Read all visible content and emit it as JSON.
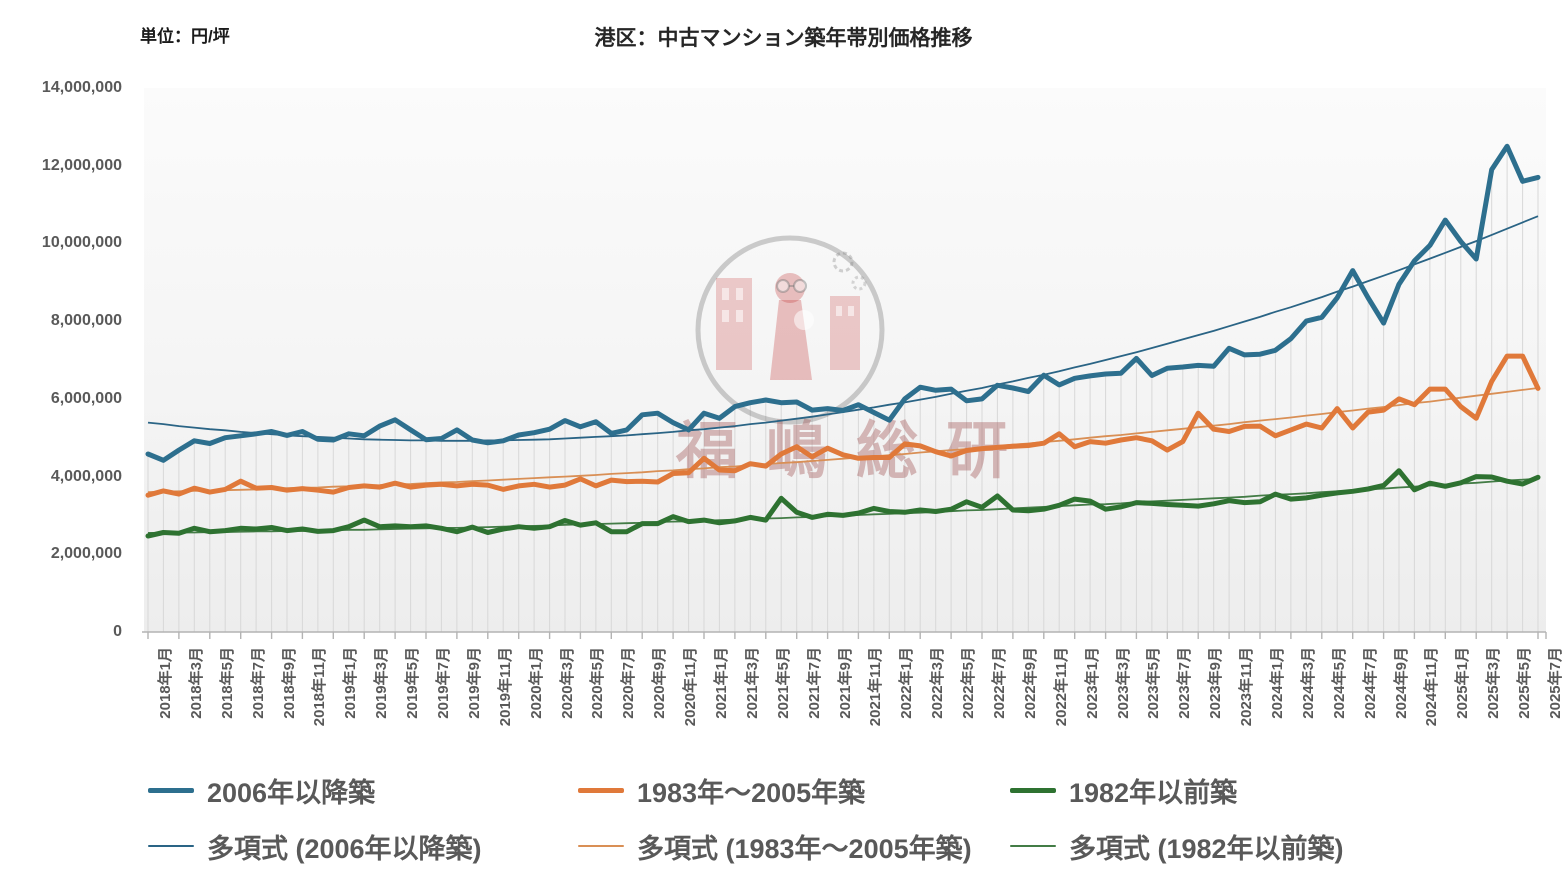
{
  "header": {
    "title": "港区：中古マンション築年帯別価格推移",
    "unit_label": "単位：円/坪"
  },
  "watermark": {
    "text": "福嶋総研"
  },
  "legend": {
    "items": [
      {
        "label": "2006年以降築"
      },
      {
        "label": "1983年〜2005年築"
      },
      {
        "label": "1982年以前築"
      },
      {
        "label": "多項式 (2006年以降築)"
      },
      {
        "label": "多項式 (1983年〜2005年築)"
      },
      {
        "label": "多項式 (1982年以前築)"
      }
    ]
  },
  "chart_data": {
    "type": "line",
    "title": "港区：中古マンション築年帯別価格推移",
    "ylabel": "円/坪",
    "ylim": [
      0,
      14000000
    ],
    "y_tick_step": 2000000,
    "grid": "vertical-drop-lines",
    "legend_position": "bottom",
    "n_points": 91,
    "x_start": "2018年1月",
    "x_end": "2025年7月",
    "x_tick_labels": [
      "2018年1月",
      "2018年3月",
      "2018年5月",
      "2018年7月",
      "2018年9月",
      "2018年11月",
      "2019年1月",
      "2019年3月",
      "2019年5月",
      "2019年7月",
      "2019年9月",
      "2019年11月",
      "2020年1月",
      "2020年3月",
      "2020年5月",
      "2020年7月",
      "2020年9月",
      "2020年11月",
      "2021年1月",
      "2021年3月",
      "2021年5月",
      "2021年7月",
      "2021年9月",
      "2021年11月",
      "2022年1月",
      "2022年3月",
      "2022年5月",
      "2022年7月",
      "2022年9月",
      "2022年11月",
      "2023年1月",
      "2023年3月",
      "2023年5月",
      "2023年7月",
      "2023年9月",
      "2023年11月",
      "2024年1月",
      "2024年3月",
      "2024年5月",
      "2024年7月",
      "2024年9月",
      "2024年11月",
      "2025年1月",
      "2025年3月",
      "2025年5月",
      "2025年7月"
    ],
    "y_tick_labels": [
      "0",
      "2,000,000",
      "4,000,000",
      "6,000,000",
      "8,000,000",
      "10,000,000",
      "12,000,000",
      "14,000,000"
    ],
    "series": [
      {
        "name": "2006年以降築",
        "role": "main",
        "color": "#2d6f8e",
        "values": [
          4580000,
          4420000,
          4680000,
          4920000,
          4850000,
          5000000,
          5050000,
          5100000,
          5160000,
          5060000,
          5160000,
          4960000,
          4940000,
          5100000,
          5050000,
          5300000,
          5460000,
          5200000,
          4950000,
          4980000,
          5200000,
          4940000,
          4870000,
          4920000,
          5070000,
          5130000,
          5220000,
          5440000,
          5280000,
          5410000,
          5110000,
          5200000,
          5590000,
          5630000,
          5390000,
          5200000,
          5630000,
          5500000,
          5800000,
          5900000,
          5970000,
          5900000,
          5920000,
          5710000,
          5750000,
          5700000,
          5850000,
          5650000,
          5450000,
          6000000,
          6300000,
          6220000,
          6250000,
          5950000,
          6000000,
          6350000,
          6280000,
          6190000,
          6610000,
          6360000,
          6530000,
          6590000,
          6640000,
          6660000,
          7040000,
          6600000,
          6790000,
          6820000,
          6860000,
          6840000,
          7300000,
          7130000,
          7150000,
          7250000,
          7550000,
          8000000,
          8100000,
          8600000,
          9300000,
          8600000,
          7950000,
          8950000,
          9550000,
          9950000,
          10600000,
          10050000,
          9600000,
          11900000,
          12500000,
          11600000,
          11700000
        ]
      },
      {
        "name": "1983年〜2005年築",
        "role": "main",
        "color": "#e0793a",
        "values": [
          3520000,
          3630000,
          3550000,
          3700000,
          3600000,
          3670000,
          3880000,
          3700000,
          3720000,
          3650000,
          3690000,
          3650000,
          3600000,
          3720000,
          3760000,
          3730000,
          3830000,
          3730000,
          3780000,
          3800000,
          3760000,
          3800000,
          3780000,
          3670000,
          3760000,
          3800000,
          3730000,
          3780000,
          3940000,
          3760000,
          3910000,
          3870000,
          3880000,
          3860000,
          4080000,
          4100000,
          4470000,
          4170000,
          4150000,
          4330000,
          4270000,
          4580000,
          4770000,
          4510000,
          4730000,
          4560000,
          4470000,
          4490000,
          4490000,
          4840000,
          4790000,
          4640000,
          4530000,
          4670000,
          4720000,
          4750000,
          4780000,
          4800000,
          4860000,
          5100000,
          4770000,
          4900000,
          4860000,
          4940000,
          5000000,
          4920000,
          4680000,
          4900000,
          5630000,
          5220000,
          5160000,
          5290000,
          5300000,
          5050000,
          5200000,
          5350000,
          5250000,
          5750000,
          5250000,
          5660000,
          5710000,
          6000000,
          5850000,
          6250000,
          6250000,
          5800000,
          5500000,
          6450000,
          7100000,
          7100000,
          6270000
        ]
      },
      {
        "name": "1982年以前築",
        "role": "main",
        "color": "#2e7231",
        "values": [
          2470000,
          2560000,
          2540000,
          2670000,
          2580000,
          2610000,
          2670000,
          2650000,
          2690000,
          2610000,
          2650000,
          2590000,
          2610000,
          2710000,
          2880000,
          2710000,
          2730000,
          2710000,
          2730000,
          2670000,
          2580000,
          2700000,
          2560000,
          2650000,
          2710000,
          2670000,
          2710000,
          2870000,
          2750000,
          2810000,
          2580000,
          2580000,
          2790000,
          2790000,
          2970000,
          2840000,
          2880000,
          2810000,
          2860000,
          2950000,
          2880000,
          3440000,
          3080000,
          2950000,
          3030000,
          3000000,
          3060000,
          3180000,
          3100000,
          3080000,
          3140000,
          3100000,
          3160000,
          3350000,
          3210000,
          3500000,
          3140000,
          3120000,
          3160000,
          3260000,
          3420000,
          3370000,
          3160000,
          3220000,
          3330000,
          3310000,
          3280000,
          3260000,
          3240000,
          3300000,
          3380000,
          3330000,
          3350000,
          3550000,
          3420000,
          3450000,
          3520000,
          3580000,
          3620000,
          3680000,
          3770000,
          4150000,
          3660000,
          3830000,
          3750000,
          3840000,
          4000000,
          3990000,
          3880000,
          3810000,
          3980000
        ]
      },
      {
        "name": "多項式 (2006年以降築)",
        "role": "trend",
        "color": "#2a6485",
        "values": [
          5390000,
          5350000,
          5300000,
          5260000,
          5220000,
          5190000,
          5150000,
          5120000,
          5090000,
          5060000,
          5040000,
          5020000,
          5000000,
          4980000,
          4960000,
          4950000,
          4940000,
          4930000,
          4930000,
          4920000,
          4920000,
          4920000,
          4930000,
          4930000,
          4940000,
          4950000,
          4960000,
          4980000,
          5000000,
          5020000,
          5040000,
          5060000,
          5090000,
          5120000,
          5150000,
          5190000,
          5220000,
          5260000,
          5300000,
          5350000,
          5390000,
          5440000,
          5490000,
          5540000,
          5600000,
          5660000,
          5720000,
          5780000,
          5850000,
          5910000,
          5980000,
          6050000,
          6130000,
          6210000,
          6280000,
          6370000,
          6450000,
          6540000,
          6620000,
          6710000,
          6810000,
          6900000,
          7000000,
          7100000,
          7200000,
          7310000,
          7420000,
          7530000,
          7640000,
          7750000,
          7870000,
          7990000,
          8110000,
          8240000,
          8360000,
          8490000,
          8620000,
          8760000,
          8890000,
          9030000,
          9170000,
          9310000,
          9460000,
          9610000,
          9760000,
          9910000,
          10060000,
          10220000,
          10380000,
          10540000,
          10700000
        ]
      },
      {
        "name": "多項式 (1983年〜2005年築)",
        "role": "trend",
        "color": "#d98f55",
        "values": [
          3600000,
          3610000,
          3620000,
          3630000,
          3640000,
          3650000,
          3660000,
          3670000,
          3680000,
          3700000,
          3710000,
          3720000,
          3740000,
          3750000,
          3770000,
          3780000,
          3800000,
          3810000,
          3830000,
          3850000,
          3860000,
          3880000,
          3900000,
          3920000,
          3940000,
          3960000,
          3980000,
          4000000,
          4020000,
          4040000,
          4070000,
          4090000,
          4110000,
          4140000,
          4160000,
          4190000,
          4210000,
          4240000,
          4260000,
          4290000,
          4320000,
          4350000,
          4370000,
          4400000,
          4430000,
          4460000,
          4490000,
          4520000,
          4550000,
          4580000,
          4620000,
          4650000,
          4680000,
          4710000,
          4750000,
          4780000,
          4820000,
          4850000,
          4890000,
          4920000,
          4960000,
          5000000,
          5040000,
          5070000,
          5110000,
          5150000,
          5190000,
          5230000,
          5270000,
          5310000,
          5350000,
          5400000,
          5440000,
          5480000,
          5520000,
          5570000,
          5610000,
          5660000,
          5700000,
          5750000,
          5790000,
          5840000,
          5890000,
          5930000,
          5980000,
          6030000,
          6080000,
          6130000,
          6180000,
          6230000,
          6280000
        ]
      },
      {
        "name": "多項式 (1982年以前築)",
        "role": "trend",
        "color": "#437c46",
        "values": [
          2550000,
          2550000,
          2560000,
          2560000,
          2570000,
          2570000,
          2580000,
          2590000,
          2590000,
          2600000,
          2600000,
          2610000,
          2620000,
          2630000,
          2630000,
          2640000,
          2650000,
          2660000,
          2670000,
          2680000,
          2680000,
          2690000,
          2700000,
          2710000,
          2720000,
          2730000,
          2740000,
          2760000,
          2770000,
          2780000,
          2790000,
          2800000,
          2810000,
          2830000,
          2840000,
          2850000,
          2860000,
          2880000,
          2890000,
          2910000,
          2920000,
          2930000,
          2950000,
          2960000,
          2980000,
          2990000,
          3010000,
          3030000,
          3040000,
          3060000,
          3070000,
          3090000,
          3110000,
          3130000,
          3140000,
          3160000,
          3180000,
          3200000,
          3220000,
          3240000,
          3260000,
          3280000,
          3290000,
          3310000,
          3340000,
          3360000,
          3380000,
          3400000,
          3420000,
          3440000,
          3460000,
          3480000,
          3510000,
          3530000,
          3550000,
          3570000,
          3600000,
          3620000,
          3640000,
          3670000,
          3690000,
          3720000,
          3740000,
          3770000,
          3790000,
          3820000,
          3840000,
          3870000,
          3900000,
          3920000,
          3950000
        ]
      }
    ]
  }
}
